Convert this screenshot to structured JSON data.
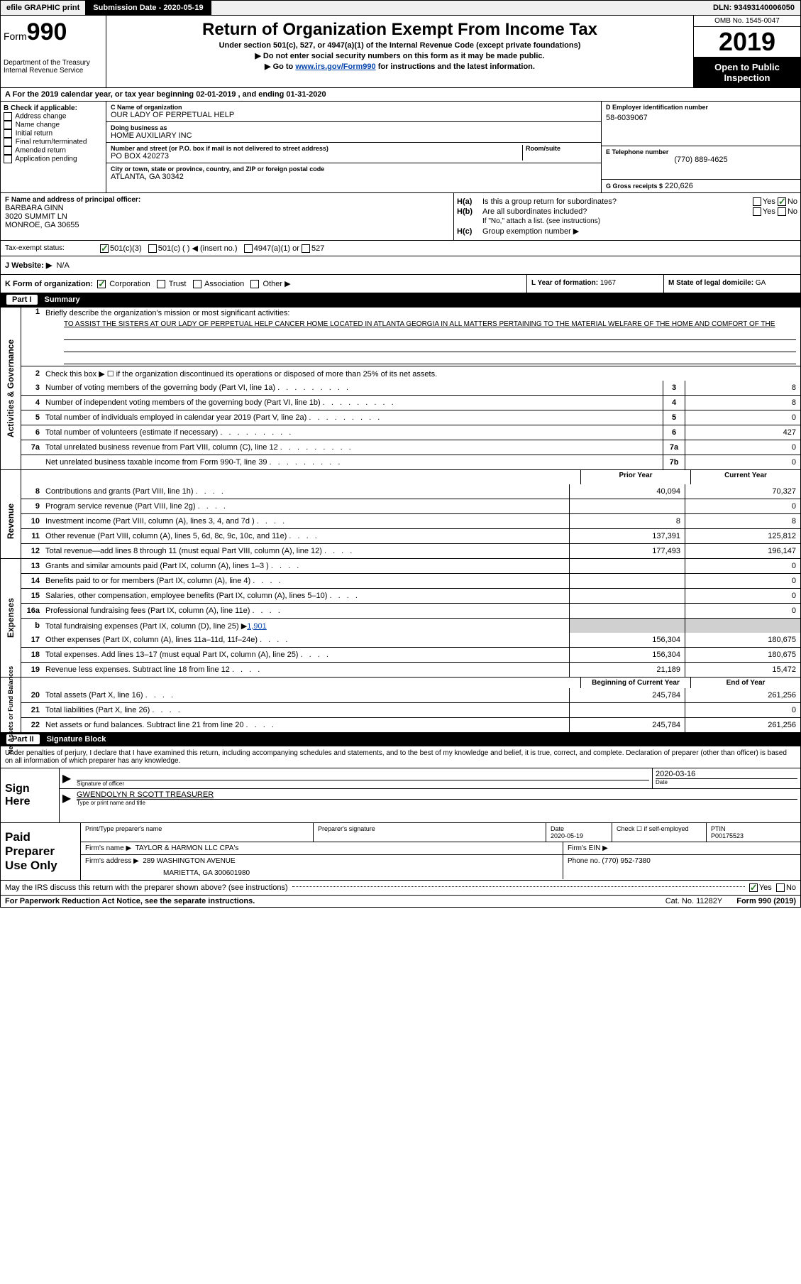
{
  "top": {
    "efile": "efile GRAPHIC print",
    "submission_lbl": "Submission Date - 2020-05-19",
    "dln": "DLN: 93493140006050"
  },
  "header": {
    "form_word": "Form",
    "form_num": "990",
    "title": "Return of Organization Exempt From Income Tax",
    "sub1": "Under section 501(c), 527, or 4947(a)(1) of the Internal Revenue Code (except private foundations)",
    "sub2": "▶ Do not enter social security numbers on this form as it may be made public.",
    "sub3_pre": "▶ Go to ",
    "sub3_link": "www.irs.gov/Form990",
    "sub3_post": " for instructions and the latest information.",
    "dept": "Department of the Treasury\nInternal Revenue Service",
    "omb": "OMB No. 1545-0047",
    "year": "2019",
    "open": "Open to Public Inspection"
  },
  "lineA": "A For the 2019 calendar year, or tax year beginning 02-01-2019    , and ending 01-31-2020",
  "colB": {
    "hdr": "B Check if applicable:",
    "items": [
      "Address change",
      "Name change",
      "Initial return",
      "Final return/terminated",
      "Amended return",
      "Application pending"
    ]
  },
  "colC": {
    "name_lbl": "C Name of organization",
    "name": "OUR LADY OF PERPETUAL HELP",
    "dba_lbl": "Doing business as",
    "dba": "HOME AUXILIARY INC",
    "addr_lbl": "Number and street (or P.O. box if mail is not delivered to street address)",
    "room_lbl": "Room/suite",
    "addr": "PO BOX 420273",
    "city_lbl": "City or town, state or province, country, and ZIP or foreign postal code",
    "city": "ATLANTA, GA  30342"
  },
  "colD": {
    "ein_lbl": "D Employer identification number",
    "ein": "58-6039067",
    "tel_lbl": "E Telephone number",
    "tel": "(770) 889-4625",
    "gross_lbl": "G Gross receipts $",
    "gross": "220,626"
  },
  "sectionF": {
    "lbl": "F  Name and address of principal officer:",
    "line1": "BARBARA GINN",
    "line2": "3020 SUMMIT LN",
    "line3": "MONROE, GA  30655"
  },
  "sectionH": {
    "ha_lbl": "Is this a group return for subordinates?",
    "hb_lbl": "Are all subordinates included?",
    "hb_note": "If \"No,\" attach a list. (see instructions)",
    "hc_lbl": "Group exemption number ▶",
    "yes": "Yes",
    "no": "No"
  },
  "taxStatus": {
    "lbl": "Tax-exempt status:",
    "o1": "501(c)(3)",
    "o2": "501(c) (   ) ◀ (insert no.)",
    "o3": "4947(a)(1) or",
    "o4": "527"
  },
  "website": {
    "lbl": "J  Website: ▶",
    "val": "N/A"
  },
  "kRow": {
    "lbl": "K Form of organization:",
    "o1": "Corporation",
    "o2": "Trust",
    "o3": "Association",
    "o4": "Other ▶",
    "l_lbl": "L Year of formation:",
    "l_val": "1967",
    "m_lbl": "M State of legal domicile:",
    "m_val": "GA"
  },
  "part1": {
    "hdr_num": "Part I",
    "hdr_txt": "Summary",
    "q1_lbl": "Briefly describe the organization's mission or most significant activities:",
    "q1_txt": "TO ASSIST THE SISTERS AT OUR LADY OF PERPETUAL HELP CANCER HOME LOCATED IN ATLANTA GEORGIA IN ALL MATTERS PERTAINING TO THE MATERIAL WELFARE OF THE HOME AND COMFORT OF THE",
    "q2": "Check this box ▶ ☐  if the organization discontinued its operations or disposed of more than 25% of its net assets.",
    "lines_gov": [
      {
        "n": "3",
        "d": "Number of voting members of the governing body (Part VI, line 1a)",
        "b": "3",
        "v": "8"
      },
      {
        "n": "4",
        "d": "Number of independent voting members of the governing body (Part VI, line 1b)",
        "b": "4",
        "v": "8"
      },
      {
        "n": "5",
        "d": "Total number of individuals employed in calendar year 2019 (Part V, line 2a)",
        "b": "5",
        "v": "0"
      },
      {
        "n": "6",
        "d": "Total number of volunteers (estimate if necessary)",
        "b": "6",
        "v": "427"
      },
      {
        "n": "7a",
        "d": "Total unrelated business revenue from Part VIII, column (C), line 12",
        "b": "7a",
        "v": "0"
      },
      {
        "n": "",
        "d": "Net unrelated business taxable income from Form 990-T, line 39",
        "b": "7b",
        "v": "0"
      }
    ],
    "col_py": "Prior Year",
    "col_cy": "Current Year",
    "side_gov": "Activities & Governance",
    "side_rev": "Revenue",
    "side_exp": "Expenses",
    "side_net": "Net Assets or Fund Balances",
    "rev_lines": [
      {
        "n": "8",
        "d": "Contributions and grants (Part VIII, line 1h)",
        "py": "40,094",
        "cy": "70,327"
      },
      {
        "n": "9",
        "d": "Program service revenue (Part VIII, line 2g)",
        "py": "",
        "cy": "0"
      },
      {
        "n": "10",
        "d": "Investment income (Part VIII, column (A), lines 3, 4, and 7d )",
        "py": "8",
        "cy": "8"
      },
      {
        "n": "11",
        "d": "Other revenue (Part VIII, column (A), lines 5, 6d, 8c, 9c, 10c, and 11e)",
        "py": "137,391",
        "cy": "125,812"
      },
      {
        "n": "12",
        "d": "Total revenue—add lines 8 through 11 (must equal Part VIII, column (A), line 12)",
        "py": "177,493",
        "cy": "196,147"
      }
    ],
    "exp_lines": [
      {
        "n": "13",
        "d": "Grants and similar amounts paid (Part IX, column (A), lines 1–3 )",
        "py": "",
        "cy": "0"
      },
      {
        "n": "14",
        "d": "Benefits paid to or for members (Part IX, column (A), line 4)",
        "py": "",
        "cy": "0"
      },
      {
        "n": "15",
        "d": "Salaries, other compensation, employee benefits (Part IX, column (A), lines 5–10)",
        "py": "",
        "cy": "0"
      },
      {
        "n": "16a",
        "d": "Professional fundraising fees (Part IX, column (A), line 11e)",
        "py": "",
        "cy": "0"
      }
    ],
    "exp_b": {
      "n": "b",
      "d": "Total fundraising expenses (Part IX, column (D), line 25) ▶",
      "link": "1,901"
    },
    "exp_lines2": [
      {
        "n": "17",
        "d": "Other expenses (Part IX, column (A), lines 11a–11d, 11f–24e)",
        "py": "156,304",
        "cy": "180,675"
      },
      {
        "n": "18",
        "d": "Total expenses. Add lines 13–17 (must equal Part IX, column (A), line 25)",
        "py": "156,304",
        "cy": "180,675"
      },
      {
        "n": "19",
        "d": "Revenue less expenses. Subtract line 18 from line 12",
        "py": "21,189",
        "cy": "15,472"
      }
    ],
    "col_boy": "Beginning of Current Year",
    "col_eoy": "End of Year",
    "net_lines": [
      {
        "n": "20",
        "d": "Total assets (Part X, line 16)",
        "py": "245,784",
        "cy": "261,256"
      },
      {
        "n": "21",
        "d": "Total liabilities (Part X, line 26)",
        "py": "",
        "cy": "0"
      },
      {
        "n": "22",
        "d": "Net assets or fund balances. Subtract line 21 from line 20",
        "py": "245,784",
        "cy": "261,256"
      }
    ]
  },
  "part2": {
    "hdr_num": "Part II",
    "hdr_txt": "Signature Block",
    "decl": "Under penalties of perjury, I declare that I have examined this return, including accompanying schedules and statements, and to the best of my knowledge and belief, it is true, correct, and complete. Declaration of preparer (other than officer) is based on all information of which preparer has any knowledge.",
    "sign_here": "Sign Here",
    "sig_officer_lbl": "Signature of officer",
    "date_lbl": "Date",
    "date_val": "2020-03-16",
    "typed_name": "GWENDOLYN R SCOTT TREASURER",
    "typed_lbl": "Type or print name and title",
    "paid_prep": "Paid Preparer Use Only",
    "pp_name_lbl": "Print/Type preparer's name",
    "pp_sig_lbl": "Preparer's signature",
    "pp_date_lbl": "Date",
    "pp_date": "2020-05-19",
    "pp_check_lbl": "Check ☐ if self-employed",
    "ptin_lbl": "PTIN",
    "ptin": "P00175523",
    "firm_name_lbl": "Firm's name    ▶",
    "firm_name": "TAYLOR & HARMON LLC CPA's",
    "firm_ein_lbl": "Firm's EIN ▶",
    "firm_addr_lbl": "Firm's address ▶",
    "firm_addr1": "289 WASHINGTON AVENUE",
    "firm_addr2": "MARIETTA, GA  300601980",
    "phone_lbl": "Phone no.",
    "phone": "(770) 952-7380",
    "discuss": "May the IRS discuss this return with the preparer shown above? (see instructions)",
    "yes": "Yes",
    "no": "No"
  },
  "footer": {
    "l": "For Paperwork Reduction Act Notice, see the separate instructions.",
    "m": "Cat. No. 11282Y",
    "r": "Form 990 (2019)"
  }
}
